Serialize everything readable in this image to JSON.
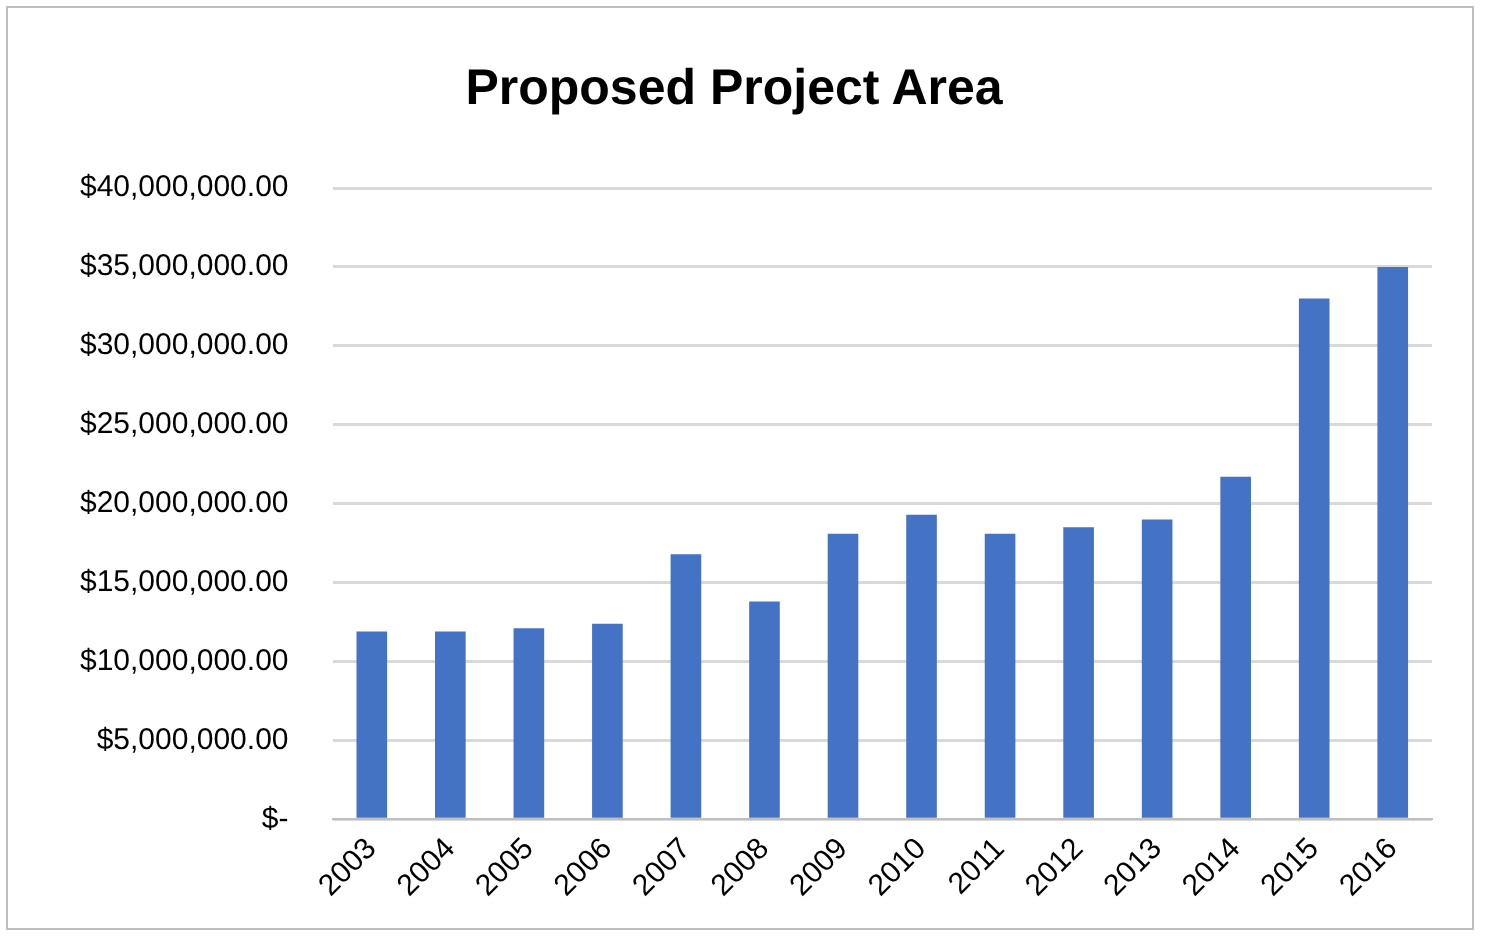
{
  "chart_data": {
    "type": "bar",
    "title": "Proposed Project Area",
    "categories": [
      "2003",
      "2004",
      "2005",
      "2006",
      "2007",
      "2008",
      "2009",
      "2010",
      "2011",
      "2012",
      "2013",
      "2014",
      "2015",
      "2016"
    ],
    "values": [
      11900000,
      11900000,
      12100000,
      12400000,
      16800000,
      13800000,
      18100000,
      19300000,
      18100000,
      18500000,
      19000000,
      21700000,
      33000000,
      35000000
    ],
    "color": "#4472c4",
    "ylim": [
      0,
      40000000
    ],
    "yticks": [
      {
        "value": 0,
        "label": "$-"
      },
      {
        "value": 5000000,
        "label": "$5,000,000.00"
      },
      {
        "value": 10000000,
        "label": "$10,000,000.00"
      },
      {
        "value": 15000000,
        "label": "$15,000,000.00"
      },
      {
        "value": 20000000,
        "label": "$20,000,000.00"
      },
      {
        "value": 25000000,
        "label": "$25,000,000.00"
      },
      {
        "value": 30000000,
        "label": "$30,000,000.00"
      },
      {
        "value": 35000000,
        "label": "$35,000,000.00"
      },
      {
        "value": 40000000,
        "label": "$40,000,000.00"
      }
    ],
    "grid": "y",
    "legend": false
  }
}
